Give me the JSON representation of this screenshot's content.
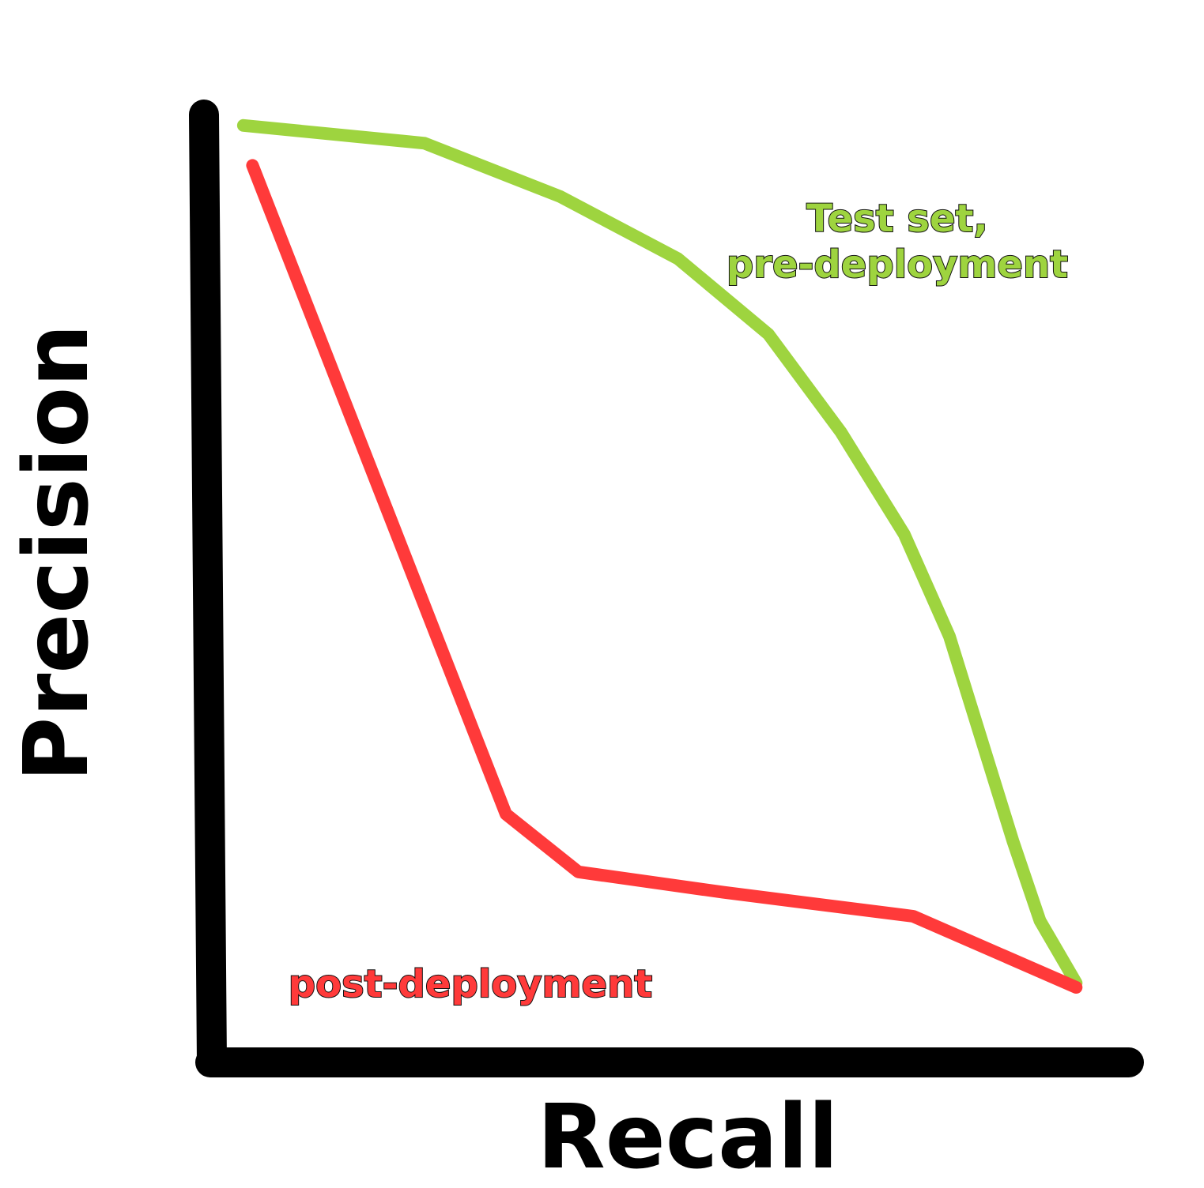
{
  "chart_data": {
    "type": "line",
    "title": "",
    "xlabel": "Recall",
    "ylabel": "Precision",
    "xlim": [
      0,
      1
    ],
    "ylim": [
      0,
      1
    ],
    "grid": false,
    "legend": "none",
    "series": [
      {
        "name": "Test set, pre-deployment",
        "label_lines": [
          "Test set,",
          "pre-deployment"
        ],
        "color": "#9ed43f",
        "points": [
          [
            0.02,
            0.97
          ],
          [
            0.22,
            0.95
          ],
          [
            0.37,
            0.89
          ],
          [
            0.5,
            0.82
          ],
          [
            0.6,
            0.735
          ],
          [
            0.68,
            0.625
          ],
          [
            0.75,
            0.51
          ],
          [
            0.8,
            0.395
          ],
          [
            0.87,
            0.165
          ],
          [
            0.9,
            0.075
          ],
          [
            0.94,
            0.005
          ]
        ]
      },
      {
        "name": "post-deployment",
        "label_lines": [
          "post-deployment"
        ],
        "color": "#ff3a3a",
        "points": [
          [
            0.03,
            0.925
          ],
          [
            0.31,
            0.195
          ],
          [
            0.39,
            0.13
          ],
          [
            0.55,
            0.107
          ],
          [
            0.76,
            0.08
          ],
          [
            0.94,
            0.0
          ]
        ]
      }
    ]
  }
}
